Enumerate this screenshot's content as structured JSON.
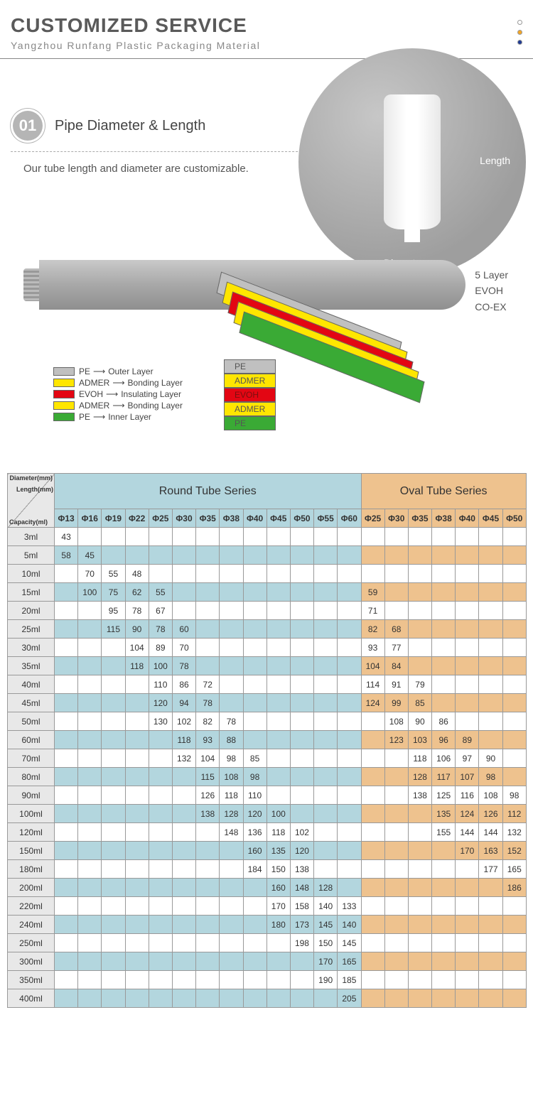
{
  "header": {
    "title": "CUSTOMIZED SERVICE",
    "subtitle": "Yangzhou Runfang Plastic Packaging Material",
    "dot_colors": [
      "#ffffff",
      "#f5a623",
      "#1f3a93"
    ],
    "dot_border": "#999999"
  },
  "section01": {
    "number": "01",
    "title": "Pipe Diameter & Length",
    "description": "Our tube length and diameter are customizable.",
    "label_length": "Length",
    "label_diameter": "Diameter"
  },
  "layers": {
    "side_text": [
      "5 Layer",
      "EVOH",
      "CO-EX"
    ],
    "legend": [
      {
        "color": "#c0c0c0",
        "material": "PE",
        "role": "Outer Layer"
      },
      {
        "color": "#ffe600",
        "material": "ADMER",
        "role": "Bonding Layer"
      },
      {
        "color": "#e30613",
        "material": "EVOH",
        "role": "Insulating Layer"
      },
      {
        "color": "#ffe600",
        "material": "ADMER",
        "role": "Bonding Layer"
      },
      {
        "color": "#3aaa35",
        "material": "PE",
        "role": "Inner Layer"
      }
    ],
    "stack_labels": [
      "PE",
      "ADMER",
      "EVOH",
      "ADMER",
      "PE"
    ],
    "stack_colors": [
      "#c0c0c0",
      "#ffe600",
      "#e30613",
      "#ffe600",
      "#3aaa35"
    ],
    "stack_text_colors": [
      "#555",
      "#555",
      "#7a1010",
      "#555",
      "#555"
    ]
  },
  "table": {
    "round_title": "Round Tube Series",
    "oval_title": "Oval Tube Series",
    "corner_labels": [
      "Diameter(mm)",
      "Length(mm)",
      "Capacity(ml)"
    ],
    "round_cols": [
      "Φ13",
      "Φ16",
      "Φ19",
      "Φ22",
      "Φ25",
      "Φ30",
      "Φ35",
      "Φ38",
      "Φ40",
      "Φ45",
      "Φ50",
      "Φ55",
      "Φ60"
    ],
    "oval_cols": [
      "Φ25",
      "Φ30",
      "Φ35",
      "Φ38",
      "Φ40",
      "Φ45",
      "Φ50"
    ],
    "rows": [
      {
        "cap": "3ml",
        "alt": false,
        "r": [
          "43",
          "",
          "",
          "",
          "",
          "",
          "",
          "",
          "",
          "",
          "",
          "",
          ""
        ],
        "o": [
          "",
          "",
          "",
          "",
          "",
          "",
          ""
        ]
      },
      {
        "cap": "5ml",
        "alt": true,
        "r": [
          "58",
          "45",
          "",
          "",
          "",
          "",
          "",
          "",
          "",
          "",
          "",
          "",
          ""
        ],
        "o": [
          "",
          "",
          "",
          "",
          "",
          "",
          ""
        ]
      },
      {
        "cap": "10ml",
        "alt": false,
        "r": [
          "",
          "70",
          "55",
          "48",
          "",
          "",
          "",
          "",
          "",
          "",
          "",
          "",
          ""
        ],
        "o": [
          "",
          "",
          "",
          "",
          "",
          "",
          ""
        ]
      },
      {
        "cap": "15ml",
        "alt": true,
        "r": [
          "",
          "100",
          "75",
          "62",
          "55",
          "",
          "",
          "",
          "",
          "",
          "",
          "",
          ""
        ],
        "o": [
          "59",
          "",
          "",
          "",
          "",
          "",
          ""
        ]
      },
      {
        "cap": "20ml",
        "alt": false,
        "r": [
          "",
          "",
          "95",
          "78",
          "67",
          "",
          "",
          "",
          "",
          "",
          "",
          "",
          ""
        ],
        "o": [
          "71",
          "",
          "",
          "",
          "",
          "",
          ""
        ]
      },
      {
        "cap": "25ml",
        "alt": true,
        "r": [
          "",
          "",
          "115",
          "90",
          "78",
          "60",
          "",
          "",
          "",
          "",
          "",
          "",
          ""
        ],
        "o": [
          "82",
          "68",
          "",
          "",
          "",
          "",
          ""
        ]
      },
      {
        "cap": "30ml",
        "alt": false,
        "r": [
          "",
          "",
          "",
          "104",
          "89",
          "70",
          "",
          "",
          "",
          "",
          "",
          "",
          ""
        ],
        "o": [
          "93",
          "77",
          "",
          "",
          "",
          "",
          ""
        ]
      },
      {
        "cap": "35ml",
        "alt": true,
        "r": [
          "",
          "",
          "",
          "118",
          "100",
          "78",
          "",
          "",
          "",
          "",
          "",
          "",
          ""
        ],
        "o": [
          "104",
          "84",
          "",
          "",
          "",
          "",
          ""
        ]
      },
      {
        "cap": "40ml",
        "alt": false,
        "r": [
          "",
          "",
          "",
          "",
          "110",
          "86",
          "72",
          "",
          "",
          "",
          "",
          "",
          ""
        ],
        "o": [
          "114",
          "91",
          "79",
          "",
          "",
          "",
          ""
        ]
      },
      {
        "cap": "45ml",
        "alt": true,
        "r": [
          "",
          "",
          "",
          "",
          "120",
          "94",
          "78",
          "",
          "",
          "",
          "",
          "",
          ""
        ],
        "o": [
          "124",
          "99",
          "85",
          "",
          "",
          "",
          ""
        ]
      },
      {
        "cap": "50ml",
        "alt": false,
        "r": [
          "",
          "",
          "",
          "",
          "130",
          "102",
          "82",
          "78",
          "",
          "",
          "",
          "",
          ""
        ],
        "o": [
          "",
          "108",
          "90",
          "86",
          "",
          "",
          ""
        ]
      },
      {
        "cap": "60ml",
        "alt": true,
        "r": [
          "",
          "",
          "",
          "",
          "",
          "118",
          "93",
          "88",
          "",
          "",
          "",
          "",
          ""
        ],
        "o": [
          "",
          "123",
          "103",
          "96",
          "89",
          "",
          ""
        ]
      },
      {
        "cap": "70ml",
        "alt": false,
        "r": [
          "",
          "",
          "",
          "",
          "",
          "132",
          "104",
          "98",
          "85",
          "",
          "",
          "",
          ""
        ],
        "o": [
          "",
          "",
          "118",
          "106",
          "97",
          "90",
          ""
        ]
      },
      {
        "cap": "80ml",
        "alt": true,
        "r": [
          "",
          "",
          "",
          "",
          "",
          "",
          "115",
          "108",
          "98",
          "",
          "",
          "",
          ""
        ],
        "o": [
          "",
          "",
          "128",
          "117",
          "107",
          "98",
          ""
        ]
      },
      {
        "cap": "90ml",
        "alt": false,
        "r": [
          "",
          "",
          "",
          "",
          "",
          "",
          "126",
          "118",
          "110",
          "",
          "",
          "",
          ""
        ],
        "o": [
          "",
          "",
          "138",
          "125",
          "116",
          "108",
          "98"
        ]
      },
      {
        "cap": "100ml",
        "alt": true,
        "r": [
          "",
          "",
          "",
          "",
          "",
          "",
          "138",
          "128",
          "120",
          "100",
          "",
          "",
          ""
        ],
        "o": [
          "",
          "",
          "",
          "135",
          "124",
          "126",
          "112"
        ]
      },
      {
        "cap": "120ml",
        "alt": false,
        "r": [
          "",
          "",
          "",
          "",
          "",
          "",
          "",
          "148",
          "136",
          "118",
          "102",
          "",
          ""
        ],
        "o": [
          "",
          "",
          "",
          "155",
          "144",
          "144",
          "132"
        ]
      },
      {
        "cap": "150ml",
        "alt": true,
        "r": [
          "",
          "",
          "",
          "",
          "",
          "",
          "",
          "",
          "160",
          "135",
          "120",
          "",
          ""
        ],
        "o": [
          "",
          "",
          "",
          "",
          "170",
          "163",
          "152"
        ]
      },
      {
        "cap": "180ml",
        "alt": false,
        "r": [
          "",
          "",
          "",
          "",
          "",
          "",
          "",
          "",
          "184",
          "150",
          "138",
          "",
          ""
        ],
        "o": [
          "",
          "",
          "",
          "",
          "",
          "177",
          "165"
        ]
      },
      {
        "cap": "200ml",
        "alt": true,
        "r": [
          "",
          "",
          "",
          "",
          "",
          "",
          "",
          "",
          "",
          "160",
          "148",
          "128",
          ""
        ],
        "o": [
          "",
          "",
          "",
          "",
          "",
          "",
          "186"
        ]
      },
      {
        "cap": "220ml",
        "alt": false,
        "r": [
          "",
          "",
          "",
          "",
          "",
          "",
          "",
          "",
          "",
          "170",
          "158",
          "140",
          "133"
        ],
        "o": [
          "",
          "",
          "",
          "",
          "",
          "",
          ""
        ]
      },
      {
        "cap": "240ml",
        "alt": true,
        "r": [
          "",
          "",
          "",
          "",
          "",
          "",
          "",
          "",
          "",
          "180",
          "173",
          "145",
          "140"
        ],
        "o": [
          "",
          "",
          "",
          "",
          "",
          "",
          ""
        ]
      },
      {
        "cap": "250ml",
        "alt": false,
        "r": [
          "",
          "",
          "",
          "",
          "",
          "",
          "",
          "",
          "",
          "",
          "198",
          "150",
          "145"
        ],
        "o": [
          "",
          "",
          "",
          "",
          "",
          "",
          ""
        ]
      },
      {
        "cap": "300ml",
        "alt": true,
        "r": [
          "",
          "",
          "",
          "",
          "",
          "",
          "",
          "",
          "",
          "",
          "",
          "170",
          "165"
        ],
        "o": [
          "",
          "",
          "",
          "",
          "",
          "",
          ""
        ]
      },
      {
        "cap": "350ml",
        "alt": false,
        "r": [
          "",
          "",
          "",
          "",
          "",
          "",
          "",
          "",
          "",
          "",
          "",
          "190",
          "185"
        ],
        "o": [
          "",
          "",
          "",
          "",
          "",
          "",
          ""
        ]
      },
      {
        "cap": "400ml",
        "alt": true,
        "r": [
          "",
          "",
          "",
          "",
          "",
          "",
          "",
          "",
          "",
          "",
          "",
          "",
          "205"
        ],
        "o": [
          "",
          "",
          "",
          "",
          "",
          "",
          ""
        ]
      }
    ],
    "colors": {
      "round_header": "#b3d6de",
      "oval_header": "#eec28e",
      "row_label_bg": "#e8e8e8",
      "border": "#999999"
    }
  }
}
